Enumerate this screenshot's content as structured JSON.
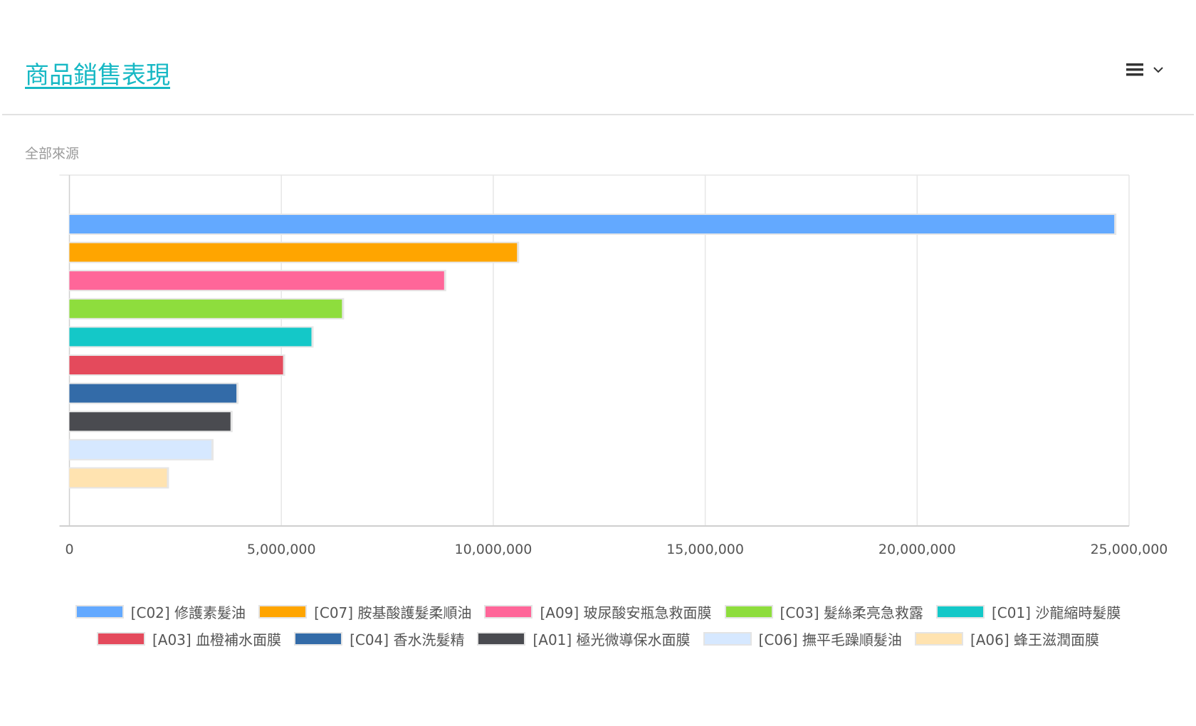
{
  "header": {
    "title": "商品銷售表現",
    "menu_icon": "hamburger-icon",
    "dropdown_icon": "chevron-down-icon"
  },
  "subtitle": "全部來源",
  "chart_data": {
    "type": "bar",
    "orientation": "horizontal",
    "title": "商品銷售表現",
    "subtitle": "全部來源",
    "categories": [
      "[C02] 修護素髮油",
      "[C07] 胺基酸護髮柔順油",
      "[A09] 玻尿酸安瓶急救面膜",
      "[C03] 髮絲柔亮急救露",
      "[C01] 沙龍縮時髮膜",
      "[A03] 血橙補水面膜",
      "[C04] 香水洗髮精",
      "[A01] 極光微導保水面膜",
      "[C06] 撫平毛躁順髮油",
      "[A06] 蜂王滋潤面膜"
    ],
    "values": [
      24650000,
      10560000,
      8840000,
      6430000,
      5710000,
      5040000,
      3940000,
      3800000,
      3350000,
      2300000
    ],
    "colors": [
      "#63a9ff",
      "#ffa500",
      "#ff6699",
      "#8edd3d",
      "#14c8c8",
      "#e44a5c",
      "#336ba8",
      "#4a4b50",
      "#d6e8ff",
      "#ffe3b0"
    ],
    "xlim": [
      0,
      25000000
    ],
    "xticks": [
      "0",
      "5,000,000",
      "10,000,000",
      "15,000,000",
      "20,000,000",
      "25,000,000"
    ],
    "xtick_values": [
      0,
      5000000,
      10000000,
      15000000,
      20000000,
      25000000
    ],
    "grid": true,
    "legend": "bottom"
  }
}
